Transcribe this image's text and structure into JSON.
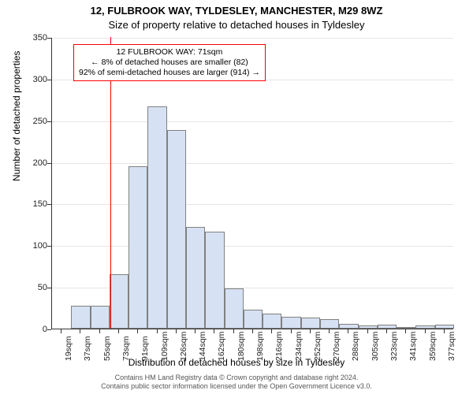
{
  "titles": {
    "line1": "12, FULBROOK WAY, TYLDESLEY, MANCHESTER, M29 8WZ",
    "line2": "Size of property relative to detached houses in Tyldesley"
  },
  "axes": {
    "xlabel": "Distribution of detached houses by size in Tyldesley",
    "ylabel": "Number of detached properties"
  },
  "chart": {
    "type": "bar",
    "ylim": [
      0,
      350
    ],
    "yticks": [
      0,
      50,
      100,
      150,
      200,
      250,
      300,
      350
    ],
    "xtick_labels": [
      "19sqm",
      "37sqm",
      "55sqm",
      "73sqm",
      "91sqm",
      "109sqm",
      "126sqm",
      "144sqm",
      "162sqm",
      "180sqm",
      "198sqm",
      "216sqm",
      "234sqm",
      "252sqm",
      "270sqm",
      "288sqm",
      "305sqm",
      "323sqm",
      "341sqm",
      "359sqm",
      "377sqm"
    ],
    "values": [
      0,
      27,
      27,
      65,
      195,
      267,
      238,
      122,
      116,
      48,
      23,
      18,
      14,
      13,
      11,
      6,
      4,
      5,
      2,
      4,
      5
    ],
    "bar_fill": "#d6e2f3",
    "bar_border": "#808080",
    "background": "#ffffff",
    "grid_color": "#e5e5e5",
    "ref_line": {
      "x_value": 71,
      "x_min": 19,
      "x_max": 377,
      "color": "#ff0000"
    }
  },
  "annotation": {
    "line1": "12 FULBROOK WAY: 71sqm",
    "line2": "← 8% of detached houses are smaller (82)",
    "line3": "92% of semi-detached houses are larger (914) →",
    "border_color": "#ff0000"
  },
  "footer": {
    "line1": "Contains HM Land Registry data © Crown copyright and database right 2024.",
    "line2": "Contains public sector information licensed under the Open Government Licence v3.0."
  }
}
